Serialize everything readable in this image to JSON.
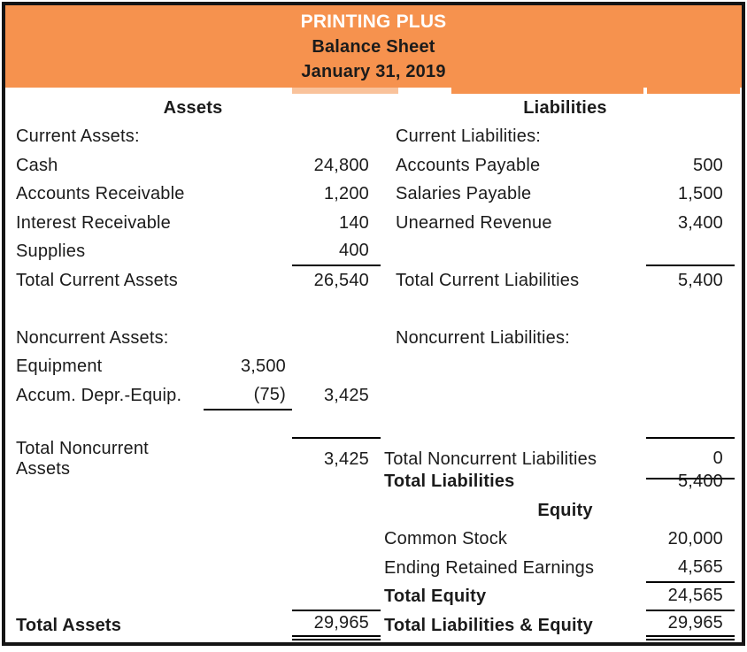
{
  "header": {
    "company": "PRINTING PLUS",
    "report": "Balance Sheet",
    "date": "January 31, 2019"
  },
  "assets": {
    "header": "Assets",
    "current_label": "Current Assets:",
    "cash_label": "Cash",
    "cash": "24,800",
    "ar_label": "Accounts Receivable",
    "ar": "1,200",
    "interest_label": "Interest Receivable",
    "interest": "140",
    "supplies_label": "Supplies",
    "supplies": "400",
    "total_current_label": "Total Current Assets",
    "total_current": "26,540",
    "noncurrent_label": "Noncurrent Assets:",
    "equipment_label": "Equipment",
    "equipment": "3,500",
    "accum_depr_label": "Accum. Depr.-Equip.",
    "accum_depr": "(75)",
    "net_equipment": "3,425",
    "total_noncurrent_label": "Total Noncurrent Assets",
    "total_noncurrent": "3,425",
    "total_label": "Total Assets",
    "total": "29,965"
  },
  "liabilities": {
    "header": "Liabilities",
    "current_label": "Current Liabilities:",
    "ap_label": "Accounts Payable",
    "ap": "500",
    "salaries_label": "Salaries Payable",
    "salaries": "1,500",
    "unearned_label": "Unearned Revenue",
    "unearned": "3,400",
    "total_current_label": "Total Current Liabilities",
    "total_current": "5,400",
    "noncurrent_label": "Noncurrent Liabilities:",
    "total_noncurrent_label": "Total Noncurrent Liabilities",
    "total_noncurrent": "0",
    "total_label": "Total Liabilities",
    "total": "5,400"
  },
  "equity": {
    "header": "Equity",
    "common_stock_label": "Common Stock",
    "common_stock": "20,000",
    "retained_label": "Ending Retained Earnings",
    "retained": "4,565",
    "total_label": "Total Equity",
    "total": "24,565",
    "total_le_label": "Total Liabilities & Equity",
    "total_le": "29,965"
  },
  "colors": {
    "header_bg": "#F6924E",
    "header_strip_light": "#F9C29B",
    "title_text": "#FFFFFF",
    "body_text": "#1B1B1B",
    "rule_line": "#000000",
    "border": "#141414"
  }
}
